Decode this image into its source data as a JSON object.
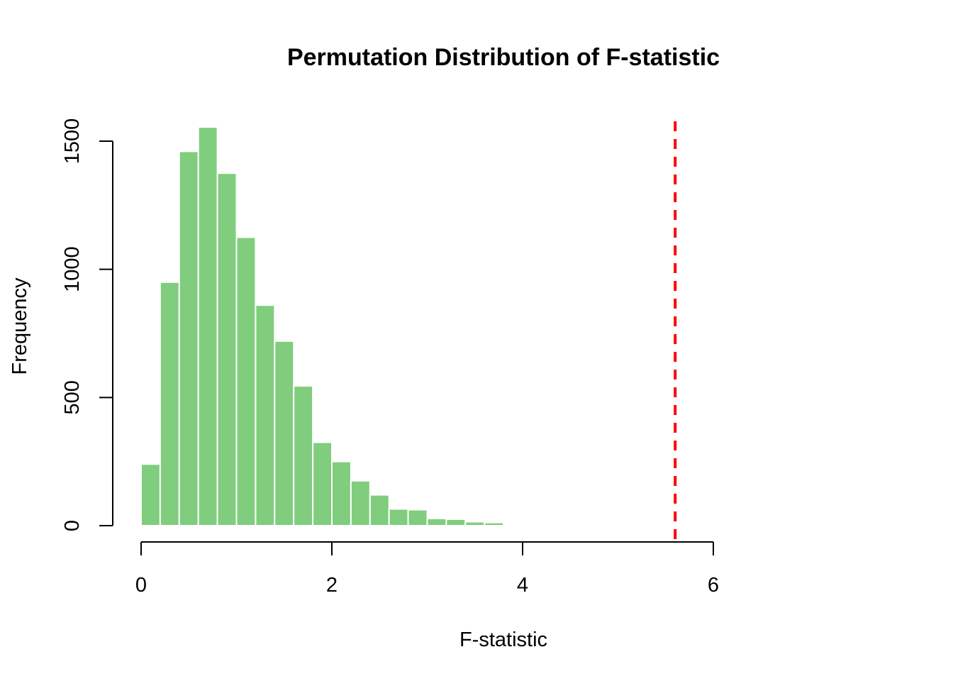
{
  "chart_data": {
    "type": "bar",
    "title": "Permutation Distribution of F-statistic",
    "xlabel": "F-statistic",
    "ylabel": "Frequency",
    "xlim": [
      0,
      6
    ],
    "ylim": [
      0,
      1550
    ],
    "x_ticks": [
      0,
      2,
      4,
      6
    ],
    "y_ticks": [
      0,
      500,
      1000,
      1500
    ],
    "bin_width": 0.2,
    "bins_start": [
      0.0,
      0.2,
      0.4,
      0.6,
      0.8,
      1.0,
      1.2,
      1.4,
      1.6,
      1.8,
      2.0,
      2.2,
      2.4,
      2.6,
      2.8,
      3.0,
      3.2,
      3.4,
      3.6,
      3.8,
      4.0
    ],
    "values": [
      240,
      950,
      1460,
      1555,
      1375,
      1125,
      860,
      720,
      545,
      325,
      250,
      175,
      120,
      65,
      62,
      28,
      25,
      15,
      12,
      4,
      3
    ],
    "bar_color": "#7fcd7d",
    "bar_border_color": "#ffffff",
    "reference_line": {
      "x": 5.6,
      "color": "#ff0000",
      "style": "dashed"
    },
    "grid": false,
    "legend": "none"
  }
}
